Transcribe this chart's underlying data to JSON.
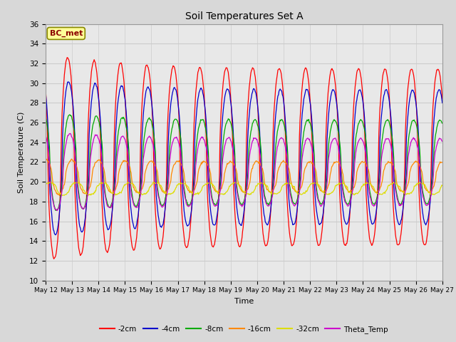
{
  "title": "Soil Temperatures Set A",
  "xlabel": "Time",
  "ylabel": "Soil Temperature (C)",
  "ylim": [
    10,
    36
  ],
  "x_tick_labels": [
    "May 12",
    "May 13",
    "May 14",
    "May 15",
    "May 16",
    "May 17",
    "May 18",
    "May 19",
    "May 20",
    "May 21",
    "May 22",
    "May 23",
    "May 24",
    "May 25",
    "May 26",
    "May 27"
  ],
  "annotation": "BC_met",
  "annotation_color": "#8B0000",
  "annotation_bg": "#FFFF99",
  "series": [
    {
      "label": "-2cm",
      "color": "#FF0000",
      "amp": 10.5,
      "base": 22.5,
      "phase_hr": 14,
      "lag_days": 0.0,
      "amp_decay": 0.92
    },
    {
      "label": "-4cm",
      "color": "#0000CC",
      "amp": 8.0,
      "base": 22.5,
      "phase_hr": 15,
      "lag_days": 0.08,
      "amp_decay": 0.97
    },
    {
      "label": "-8cm",
      "color": "#00AA00",
      "amp": 5.0,
      "base": 22.0,
      "phase_hr": 16,
      "lag_days": 0.17,
      "amp_decay": 0.98
    },
    {
      "label": "-16cm",
      "color": "#FF8800",
      "amp": 1.8,
      "base": 20.5,
      "phase_hr": 18,
      "lag_days": 0.35,
      "amp_decay": 1.0
    },
    {
      "label": "-32cm",
      "color": "#DDDD00",
      "amp": 0.65,
      "base": 19.3,
      "phase_hr": 22,
      "lag_days": 0.7,
      "amp_decay": 1.0
    },
    {
      "label": "Theta_Temp",
      "color": "#CC00CC",
      "amp": 4.0,
      "base": 21.0,
      "phase_hr": 16,
      "lag_days": 0.2,
      "amp_decay": 0.98
    }
  ],
  "grid_color": "#CCCCCC",
  "bg_color": "#D8D8D8",
  "plot_bg": "#E8E8E8"
}
